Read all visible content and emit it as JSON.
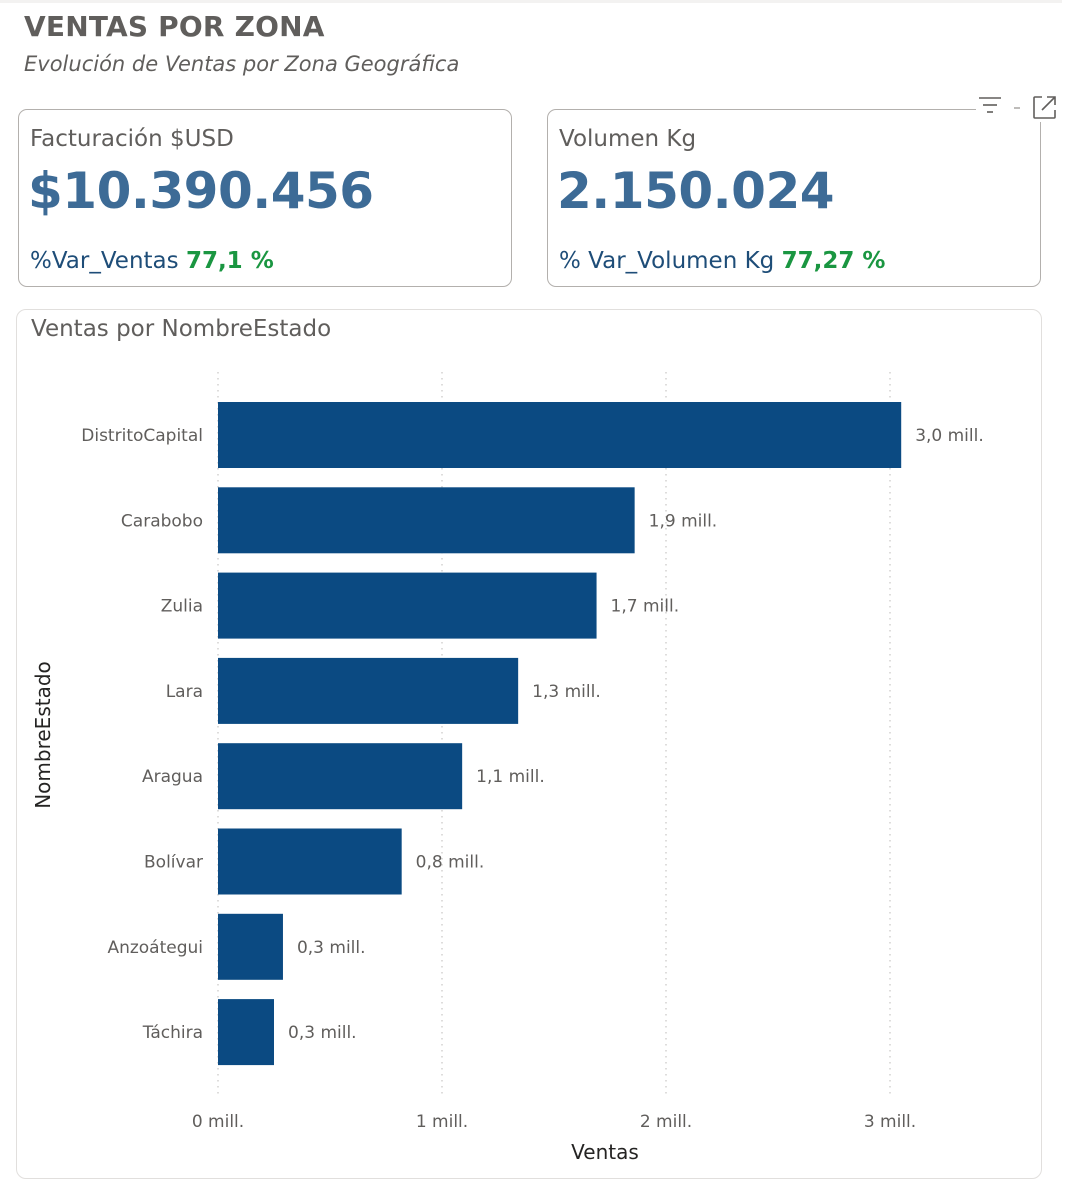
{
  "page": {
    "title": "VENTAS POR ZONA",
    "subtitle": "Evolución de Ventas por Zona Geográfica"
  },
  "cards": [
    {
      "label": "Facturación $USD",
      "value": "$10.390.456",
      "var_label": "%Var_Ventas",
      "var_value": "77,1 %"
    },
    {
      "label": "Volumen Kg",
      "value": "2.150.024",
      "var_label": "% Var_Volumen Kg",
      "var_value": "77,27 %"
    }
  ],
  "toolbar": {
    "filter_icon": "filter-icon",
    "separator": "-",
    "focus_icon": "focus-mode-icon"
  },
  "colors": {
    "bar": "#0b4a82",
    "kpi_value": "#3d6b96",
    "kpi_var_label": "#1e4d78",
    "kpi_var_positive": "#1a9641"
  },
  "chart_data": {
    "type": "bar",
    "orientation": "horizontal",
    "title": "Ventas por NombreEstado",
    "xlabel": "Ventas",
    "ylabel": "NombreEstado",
    "categories": [
      "DistritoCapital",
      "Carabobo",
      "Zulia",
      "Lara",
      "Aragua",
      "Bolívar",
      "Anzoátegui",
      "Táchira"
    ],
    "values": [
      3.05,
      1.86,
      1.69,
      1.34,
      1.09,
      0.82,
      0.29,
      0.25
    ],
    "data_labels": [
      "3,0 mill.",
      "1,9 mill.",
      "1,7 mill.",
      "1,3 mill.",
      "1,1 mill.",
      "0,8 mill.",
      "0,3 mill.",
      "0,3 mill."
    ],
    "unit": "millones",
    "xlim": [
      0,
      3.5
    ],
    "xticks": [
      0,
      1,
      2,
      3
    ],
    "xtick_labels": [
      "0 mill.",
      "1 mill.",
      "2 mill.",
      "3 mill."
    ],
    "grid": true,
    "legend": "none"
  }
}
